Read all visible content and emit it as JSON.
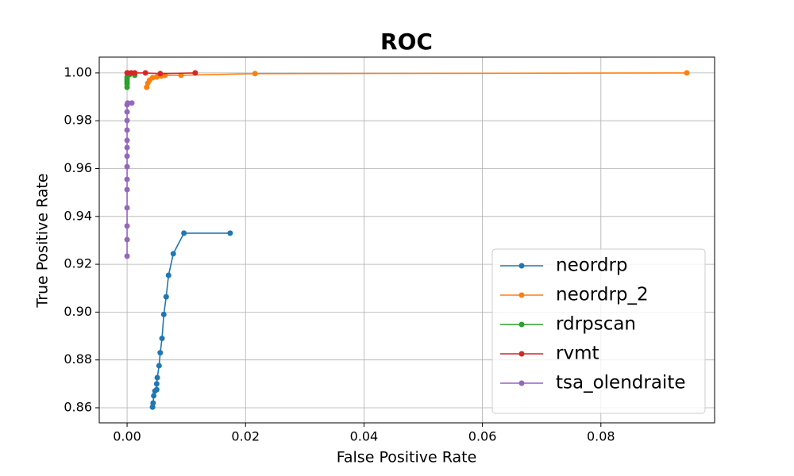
{
  "chart_data": {
    "type": "line",
    "title": "ROC",
    "x_label": "False Positive Rate",
    "y_label": "True Positive Rate",
    "xlim": [
      -0.0047,
      0.0992
    ],
    "ylim": [
      0.8537,
      1.0066
    ],
    "xticks": [
      {
        "value": 0,
        "label": "0.00"
      },
      0.02,
      0.04,
      0.06,
      0.08
    ],
    "yticks": [
      0.86,
      0.88,
      {
        "value": 0.9,
        "label": "0.90"
      },
      0.92,
      0.94,
      0.96,
      0.98,
      {
        "value": 1,
        "label": "1.00"
      }
    ],
    "grid": true,
    "legend": "lower right",
    "series": [
      {
        "name": "neordrp",
        "color": "#1f77b4",
        "x": [
          0.0043,
          0.0044,
          0.0045,
          0.0047,
          0.005,
          0.005,
          0.0051,
          0.0054,
          0.0056,
          0.0059,
          0.0062,
          0.0066,
          0.007,
          0.0078,
          0.0096,
          0.0174
        ],
        "values": [
          0.8603,
          0.862,
          0.865,
          0.867,
          0.8676,
          0.87,
          0.8726,
          0.8776,
          0.883,
          0.889,
          0.899,
          0.9064,
          0.9154,
          0.9244,
          0.933,
          0.933
        ]
      },
      {
        "name": "neordrp_2",
        "color": "#ff7f0e",
        "x": [
          0.0033,
          0.0035,
          0.0038,
          0.0043,
          0.005,
          0.0058,
          0.0064,
          0.0091,
          0.0216,
          0.0945
        ],
        "values": [
          0.994,
          0.9957,
          0.997,
          0.998,
          0.9983,
          0.9987,
          0.999,
          0.999,
          0.9997,
          1
        ]
      },
      {
        "name": "rdrpscan",
        "color": "#2ca02c",
        "x": [
          0,
          0,
          0,
          0,
          0,
          0.0004,
          0.0013
        ],
        "values": [
          0.994,
          0.9954,
          0.9964,
          0.9973,
          0.9983,
          0.9993,
          0.999
        ]
      },
      {
        "name": "rvmt",
        "color": "#d62728",
        "x": [
          0,
          0.0001,
          0.0007,
          0.0013,
          0.0031,
          0.0056,
          0.0115
        ],
        "values": [
          1,
          1,
          1,
          1,
          1,
          0.9997,
          1
        ]
      },
      {
        "name": "tsa_olendraite",
        "color": "#9467bd",
        "x": [
          0,
          0,
          0,
          0,
          0,
          0,
          0,
          0,
          0,
          0,
          0,
          0,
          0,
          0,
          0.0001,
          0.0008
        ],
        "values": [
          0.9234,
          0.9303,
          0.936,
          0.9436,
          0.9512,
          0.9555,
          0.9608,
          0.9652,
          0.9688,
          0.9718,
          0.9761,
          0.9801,
          0.9837,
          0.9867,
          0.9874,
          0.9874
        ]
      }
    ]
  }
}
